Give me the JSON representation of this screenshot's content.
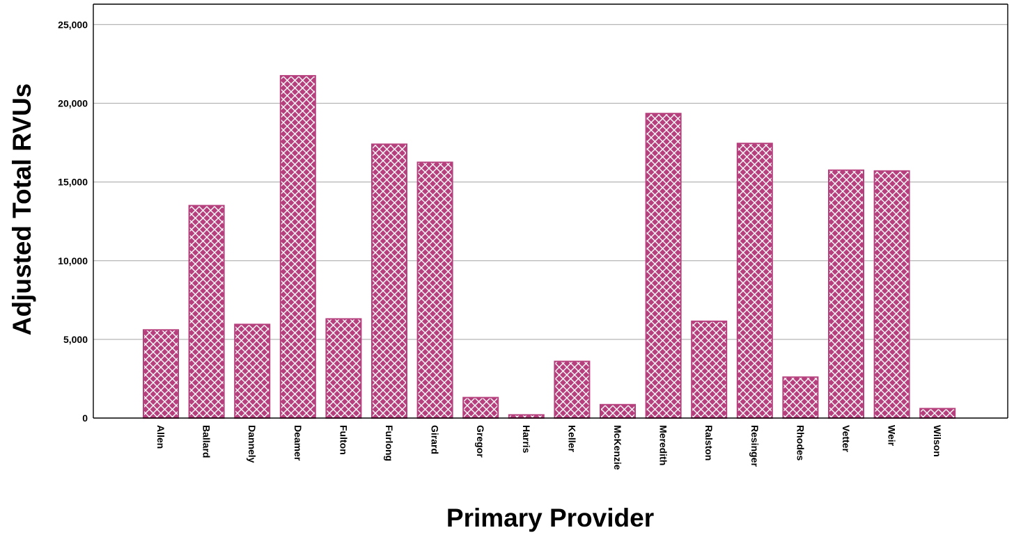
{
  "chart_data": {
    "type": "bar",
    "xlabel": "Primary Provider",
    "ylabel": "Adjusted Total RVUs",
    "ylim": [
      0,
      26300
    ],
    "yticks": [
      0,
      5000,
      10000,
      15000,
      20000,
      25000
    ],
    "ytick_labels": [
      "0",
      "5,000",
      "10,000",
      "15,000",
      "20,000",
      "25,000"
    ],
    "grid": true,
    "categories": [
      "Allen",
      "Ballard",
      "Dannely",
      "Deamer",
      "Fulton",
      "Furlong",
      "Girard",
      "Gregor",
      "Harris",
      "Keller",
      "McKenzie",
      "Meredith",
      "Ralston",
      "Resinger",
      "Rhodes",
      "Vetter",
      "Weir",
      "Wilson"
    ],
    "values": [
      5600,
      13500,
      5950,
      21750,
      6300,
      17400,
      16250,
      1300,
      200,
      3600,
      850,
      19350,
      6150,
      17450,
      2600,
      15750,
      15700,
      600
    ],
    "bar_color": "#B6407D",
    "hatch": "crosshatch"
  }
}
